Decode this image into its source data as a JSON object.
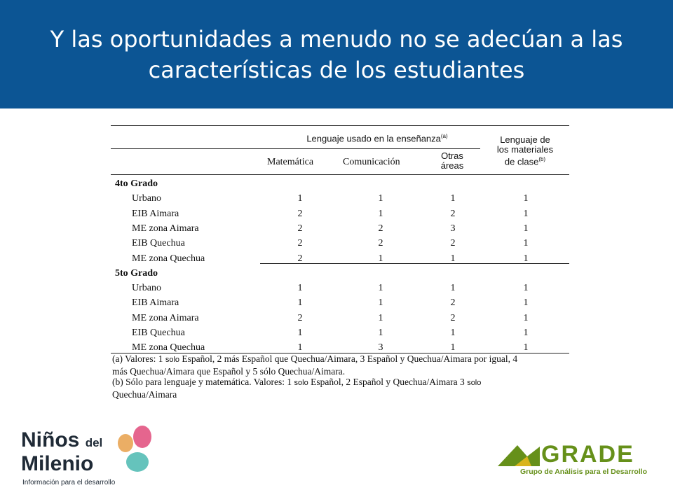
{
  "slide": {
    "title_line1": "Y las oportunidades a menudo no se adecúan a las",
    "title_line2": "características de los estudiantes"
  },
  "table": {
    "group_header": "Lenguaje usado en la enseñanza",
    "group_header_note": "(a)",
    "materials_header_line1": "Lenguaje de",
    "materials_header_line2": "los materiales",
    "materials_header_line3": "de clase",
    "materials_header_note": "(b)",
    "columns": [
      "Matemática",
      "Comunicación",
      "Otras",
      "áreas"
    ],
    "groups": [
      {
        "label": "4to Grado",
        "rows": [
          {
            "name": "Urbano",
            "values": [
              "1",
              "1",
              "1",
              "1"
            ]
          },
          {
            "name": "EIB Aimara",
            "values": [
              "2",
              "1",
              "2",
              "1"
            ]
          },
          {
            "name": "ME zona Aimara",
            "values": [
              "2",
              "2",
              "3",
              "1"
            ]
          },
          {
            "name": "EIB Quechua",
            "values": [
              "2",
              "2",
              "2",
              "1"
            ]
          },
          {
            "name": "ME zona Quechua",
            "values": [
              "2",
              "1",
              "1",
              "1"
            ]
          }
        ]
      },
      {
        "label": "5to Grado",
        "rows": [
          {
            "name": "Urbano",
            "values": [
              "1",
              "1",
              "1",
              "1"
            ]
          },
          {
            "name": "EIB Aimara",
            "values": [
              "1",
              "1",
              "2",
              "1"
            ]
          },
          {
            "name": "ME zona Aimara",
            "values": [
              "2",
              "1",
              "2",
              "1"
            ]
          },
          {
            "name": "EIB Quechua",
            "values": [
              "1",
              "1",
              "1",
              "1"
            ]
          },
          {
            "name": "ME zona Quechua",
            "values": [
              "1",
              "3",
              "1",
              "1"
            ]
          }
        ]
      }
    ]
  },
  "notes": {
    "a_line1_pre": "(a) Valores: 1 ",
    "a_solo": "solo",
    "a_line1_post": "  Español, 2 más Español que Quechua/Aimara, 3 Español y Quechua/Aimara por igual, 4",
    "a_line2": "más Quechua/Aimara que Español y 5 sólo Quechua/Aimara.",
    "b_line1_pre": "(b) Sólo para lenguaje y matemática. Valores: 1 ",
    "b_solo1": "solo",
    "b_line1_mid": "  Español, 2 Español y Quechua/Aimara 3 ",
    "b_solo2": "solo",
    "b_line2": "Quechua/Aimara"
  },
  "logos": {
    "ninos_line1": "Niños",
    "ninos_del": "del",
    "ninos_line2": "Milenio",
    "ninos_tagline": "Información para el desarrollo",
    "grade_name": "GRADE",
    "grade_tagline": "Grupo de Análisis para el Desarrollo"
  },
  "colors": {
    "header_bg": "#0c5594",
    "grade_green": "#66901a"
  }
}
